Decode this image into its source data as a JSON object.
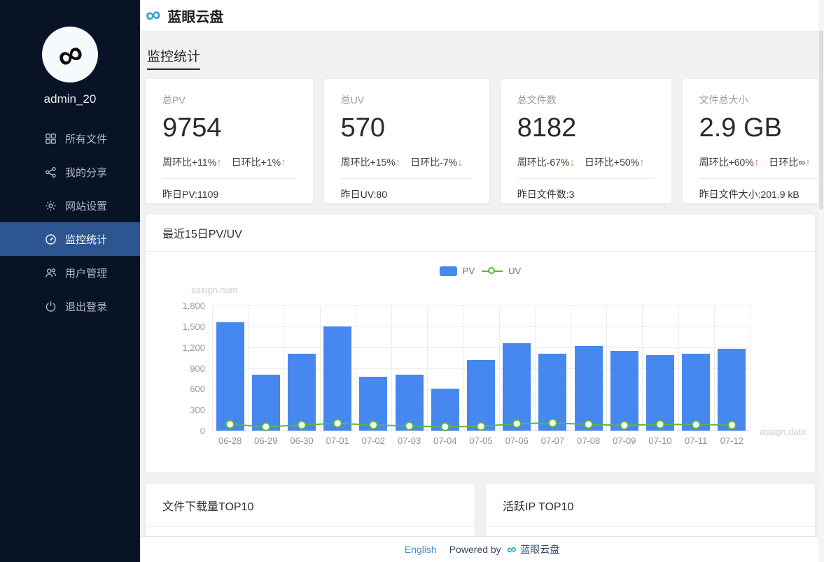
{
  "app": {
    "brand": "蓝眼云盘"
  },
  "sidebar": {
    "username": "admin_20",
    "items": [
      {
        "id": "all-files",
        "label": "所有文件",
        "icon": "grid-icon",
        "active": false
      },
      {
        "id": "my-shares",
        "label": "我的分享",
        "icon": "share-icon",
        "active": false
      },
      {
        "id": "site-settings",
        "label": "网站设置",
        "icon": "gear-icon",
        "active": false
      },
      {
        "id": "monitor-stats",
        "label": "监控统计",
        "icon": "gauge-icon",
        "active": true
      },
      {
        "id": "user-management",
        "label": "用户管理",
        "icon": "users-icon",
        "active": false
      },
      {
        "id": "logout",
        "label": "退出登录",
        "icon": "power-icon",
        "active": false
      }
    ]
  },
  "page": {
    "title": "监控统计"
  },
  "stat_cards": [
    {
      "label": "总PV",
      "value": "9754",
      "week_label": "周环比+11%",
      "week_dir": "up",
      "day_label": "日环比+1%",
      "day_dir": "up",
      "footer": "昨日PV:1109"
    },
    {
      "label": "总UV",
      "value": "570",
      "week_label": "周环比+15%",
      "week_dir": "up",
      "day_label": "日环比-7%",
      "day_dir": "down",
      "footer": "昨日UV:80"
    },
    {
      "label": "总文件数",
      "value": "8182",
      "week_label": "周环比-67%",
      "week_dir": "down",
      "day_label": "日环比+50%",
      "day_dir": "up",
      "footer": "昨日文件数:3"
    },
    {
      "label": "文件总大小",
      "value": "2.9 GB",
      "week_label": "周环比+60%",
      "week_dir": "up",
      "day_label": "日环比∞",
      "day_dir": "up",
      "footer": "昨日文件大小:201.9 kB"
    }
  ],
  "chart_card": {
    "title": "最近15日PV/UV"
  },
  "chart_data": {
    "type": "bar+line",
    "title": "最近15日PV/UV",
    "categories": [
      "06-28",
      "06-29",
      "06-30",
      "07-01",
      "07-02",
      "07-03",
      "07-04",
      "07-05",
      "07-06",
      "07-07",
      "07-08",
      "07-09",
      "07-10",
      "07-11",
      "07-12"
    ],
    "series": [
      {
        "name": "PV",
        "type": "bar",
        "color": "#4787F0",
        "values": [
          1560,
          800,
          1110,
          1500,
          770,
          810,
          600,
          1015,
          1260,
          1105,
          1215,
          1145,
          1090,
          1105,
          1175
        ]
      },
      {
        "name": "UV",
        "type": "line",
        "color": "#59B73D",
        "values": [
          90,
          55,
          80,
          105,
          80,
          65,
          55,
          60,
          100,
          110,
          90,
          75,
          90,
          85,
          80
        ]
      }
    ],
    "xlabel": "assign.date",
    "ylabel": "assign.num",
    "ylim": [
      0,
      1800
    ],
    "ytick_labels": [
      "1,800",
      "1,500",
      "1,200",
      "900",
      "600",
      "300",
      "0"
    ],
    "grid": true,
    "legend_position": "top-center"
  },
  "bottom_cards": [
    {
      "title": "文件下载量TOP10"
    },
    {
      "title": "活跃IP TOP10"
    }
  ],
  "footer": {
    "language": "English",
    "powered_by": "Powered by",
    "brand": "蓝眼云盘"
  },
  "colors": {
    "bar_blue": "#4787F0",
    "line_green": "#59B73D",
    "trend_up_red": "#f0826e",
    "trend_down_green": "#6fbe3f",
    "sidebar_bg": "#081426",
    "sidebar_active_bg": "#2d5690",
    "link_blue": "#4191d6",
    "footer_text": "#34495e"
  }
}
